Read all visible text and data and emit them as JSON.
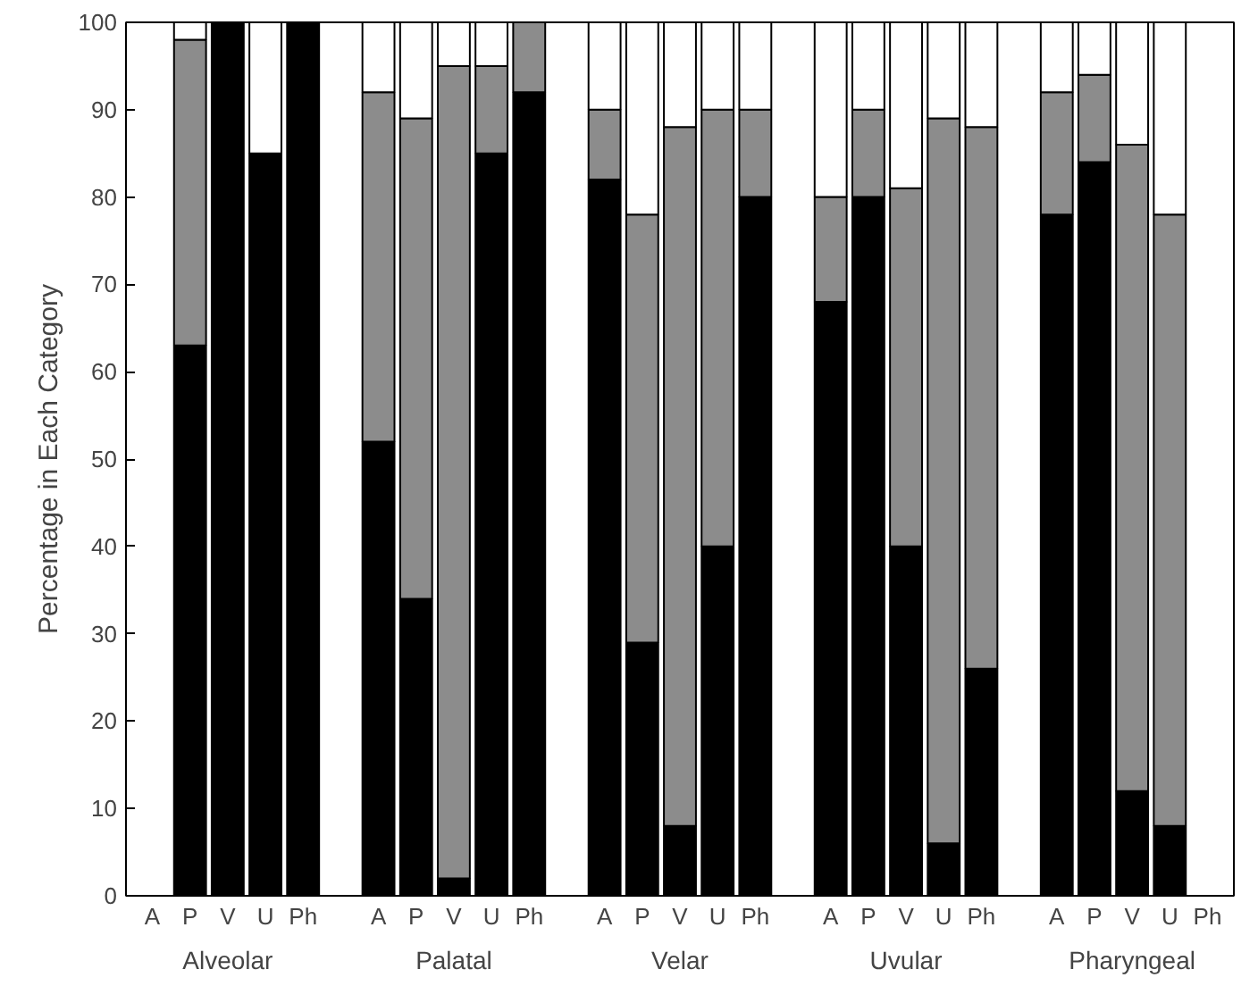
{
  "chart_data": {
    "type": "bar",
    "stacked": true,
    "ylabel": "Percentage in Each Category",
    "categories": [
      "A",
      "P",
      "V",
      "U",
      "Ph",
      null,
      "A",
      "P",
      "V",
      "U",
      "Ph",
      null,
      "A",
      "P",
      "V",
      "U",
      "Ph",
      null,
      "A",
      "P",
      "V",
      "U",
      "Ph",
      null,
      "A",
      "P",
      "V",
      "U",
      "Ph"
    ],
    "annotations": [
      "Alveolar",
      "Palatal",
      "Velar",
      "Uvular",
      "Pharyngeal"
    ],
    "series": [
      {
        "color": "#000000",
        "values": [
          null,
          63,
          100,
          85,
          100,
          null,
          52,
          34,
          2,
          85,
          92,
          null,
          82,
          29,
          8,
          40,
          80,
          null,
          68,
          80,
          40,
          6,
          26,
          null,
          78,
          84,
          12,
          8,
          null
        ]
      },
      {
        "color": "#8c8c8c",
        "values": [
          null,
          35,
          0,
          0,
          0,
          null,
          40,
          55,
          93,
          10,
          8,
          null,
          8,
          49,
          80,
          50,
          10,
          null,
          12,
          10,
          41,
          83,
          62,
          null,
          14,
          10,
          74,
          70,
          null
        ]
      },
      {
        "color": "#ffffff",
        "values": [
          null,
          2,
          0,
          15,
          0,
          null,
          8,
          11,
          5,
          5,
          0,
          null,
          10,
          22,
          12,
          10,
          10,
          null,
          20,
          10,
          19,
          11,
          12,
          null,
          8,
          6,
          14,
          22,
          null
        ]
      }
    ],
    "ylim": [
      0,
      100
    ],
    "yticks": [
      0,
      10,
      20,
      30,
      40,
      50,
      60,
      70,
      80,
      90,
      100
    ]
  }
}
